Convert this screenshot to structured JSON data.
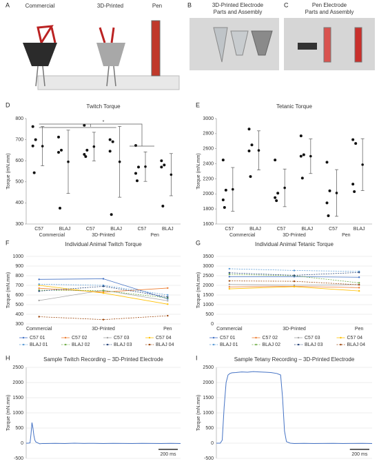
{
  "photos": {
    "a": {
      "label": "A",
      "captions": [
        "Commercial",
        "3D-Printed",
        "Pen"
      ]
    },
    "b": {
      "label": "B",
      "title": [
        "3D-Printed Electrode",
        "Parts and Assembly"
      ]
    },
    "c": {
      "label": "C",
      "title": [
        "Pen Electrode",
        "Parts and Assembly"
      ]
    }
  },
  "chart_data": [
    {
      "type": "dotplot",
      "label": "D",
      "title": "Twitch Torque",
      "y_label": "Torque (mN.mm)",
      "categories": [
        "C57",
        "BLAJ",
        "C57",
        "BLAJ",
        "C57",
        "BLAJ"
      ],
      "groups": [
        "Commercial",
        "3D-Printed",
        "Pen"
      ],
      "points": [
        [
          762,
          700,
          670,
          543
        ],
        [
          712,
          650,
          640,
          375
        ],
        [
          768,
          650,
          630,
          620
        ],
        [
          700,
          690,
          645,
          345
        ],
        [
          672,
          570,
          540,
          505
        ],
        [
          600,
          580,
          570,
          385
        ]
      ],
      "means": [
        669,
        595,
        667,
        595,
        572,
        534
      ],
      "errors": [
        93,
        150,
        68,
        168,
        70,
        100
      ],
      "annotation": "*",
      "ylim": [
        300,
        800
      ],
      "yticks": [
        300,
        400,
        500,
        600,
        700,
        800
      ],
      "color": "#111111"
    },
    {
      "type": "dotplot",
      "label": "E",
      "title": "Tetanic Torque",
      "y_label": "Torque (mN.mm)",
      "categories": [
        "C57",
        "BLAJ",
        "C57",
        "BLAJ",
        "C57",
        "BLAJ"
      ],
      "groups": [
        "Commercial",
        "3D-Printed",
        "Pen"
      ],
      "points": [
        [
          2450,
          2050,
          1920,
          1820
        ],
        [
          2860,
          2650,
          2570,
          2230
        ],
        [
          2450,
          2010,
          1950,
          1910
        ],
        [
          2770,
          2520,
          2500,
          2210
        ],
        [
          2420,
          2040,
          1880,
          1710
        ],
        [
          2720,
          2670,
          2130,
          2030
        ]
      ],
      "means": [
        2060,
        2577,
        2080,
        2500,
        2012,
        2388
      ],
      "errors": [
        290,
        260,
        250,
        230,
        310,
        345
      ],
      "ylim": [
        1600,
        3000
      ],
      "yticks": [
        1600,
        1800,
        2000,
        2200,
        2400,
        2600,
        2800,
        3000
      ],
      "color": "#111111"
    },
    {
      "type": "line",
      "label": "F",
      "title": "Individual Animal Twitch Torque",
      "y_label": "Torque (mN.mm)",
      "categories": [
        "Commercial",
        "3D-Printed",
        "Pen"
      ],
      "ylim": [
        300,
        1000
      ],
      "yticks": [
        300,
        400,
        500,
        600,
        700,
        800,
        900,
        1000
      ],
      "grid": true,
      "series": [
        {
          "name": "C57 01",
          "color": "#4472c4",
          "dash": false,
          "values": [
            762,
            768,
            560
          ]
        },
        {
          "name": "C57 02",
          "color": "#ed7d31",
          "dash": false,
          "values": [
            670,
            630,
            672
          ]
        },
        {
          "name": "C57 03",
          "color": "#a5a5a5",
          "dash": false,
          "values": [
            543,
            650,
            540
          ]
        },
        {
          "name": "C57 04",
          "color": "#ffc000",
          "dash": false,
          "values": [
            700,
            620,
            505
          ]
        },
        {
          "name": "BLAJ 01",
          "color": "#5b9bd5",
          "dash": true,
          "values": [
            712,
            700,
            600
          ]
        },
        {
          "name": "BLAJ 02",
          "color": "#70ad47",
          "dash": true,
          "values": [
            650,
            645,
            570
          ]
        },
        {
          "name": "BLAJ 03",
          "color": "#264478",
          "dash": true,
          "values": [
            640,
            690,
            580
          ]
        },
        {
          "name": "BLAJ 04",
          "color": "#9e480e",
          "dash": true,
          "values": [
            375,
            345,
            385
          ]
        }
      ]
    },
    {
      "type": "line",
      "label": "G",
      "title": "Individual Animal Tetanic Torque",
      "y_label": "Torque (mN.mm)",
      "categories": [
        "Commercial",
        "3D-Printed",
        "Pen"
      ],
      "ylim": [
        0,
        3500
      ],
      "yticks": [
        0,
        500,
        1000,
        1500,
        2000,
        2500,
        3000,
        3500
      ],
      "grid": true,
      "series": [
        {
          "name": "C57 01",
          "color": "#4472c4",
          "dash": false,
          "values": [
            2450,
            2450,
            2420
          ]
        },
        {
          "name": "C57 02",
          "color": "#ed7d31",
          "dash": false,
          "values": [
            1920,
            1950,
            1880
          ]
        },
        {
          "name": "C57 03",
          "color": "#a5a5a5",
          "dash": false,
          "values": [
            2050,
            2010,
            2040
          ]
        },
        {
          "name": "C57 04",
          "color": "#ffc000",
          "dash": false,
          "values": [
            1820,
            1930,
            1710
          ]
        },
        {
          "name": "BLAJ 01",
          "color": "#5b9bd5",
          "dash": true,
          "values": [
            2860,
            2770,
            2720
          ]
        },
        {
          "name": "BLAJ 02",
          "color": "#70ad47",
          "dash": true,
          "values": [
            2570,
            2500,
            2130
          ]
        },
        {
          "name": "BLAJ 03",
          "color": "#264478",
          "dash": true,
          "values": [
            2650,
            2520,
            2670
          ]
        },
        {
          "name": "BLAJ 04",
          "color": "#9e480e",
          "dash": true,
          "values": [
            2230,
            2210,
            2030
          ]
        }
      ]
    },
    {
      "type": "trace",
      "label": "H",
      "title": "Sample Twitch Recording – 3D-Printed Electrode",
      "y_label": "Torque (mN.mm)",
      "x": [
        0,
        20,
        40,
        50,
        60,
        70,
        80,
        90,
        100,
        120,
        140,
        170,
        200,
        300,
        400,
        500,
        600,
        700,
        800,
        900,
        1000,
        1100,
        1200,
        1300,
        1400,
        1500,
        1600
      ],
      "y": [
        0,
        0,
        10,
        300,
        680,
        500,
        250,
        100,
        40,
        10,
        -20,
        -10,
        -10,
        -5,
        -10,
        0,
        -8,
        -5,
        -10,
        -5,
        -8,
        -10,
        -5,
        -8,
        -10,
        -5,
        -10
      ],
      "xlim": [
        0,
        1600
      ],
      "ylim": [
        -500,
        2500
      ],
      "yticks": [
        -500,
        0,
        500,
        1000,
        1500,
        2000,
        2500
      ],
      "grid": true,
      "color": "#4472c4",
      "scale_bar": {
        "value": 200,
        "label": "200 ms"
      }
    },
    {
      "type": "trace",
      "label": "I",
      "title": "Sample Tetany Recording – 3D-Printed Electrode",
      "y_label": "Torque (mN.mm)",
      "x": [
        0,
        40,
        60,
        80,
        100,
        120,
        140,
        160,
        200,
        260,
        320,
        380,
        440,
        500,
        560,
        620,
        660,
        680,
        700,
        720,
        760,
        800,
        900,
        1000,
        1100,
        1200,
        1300,
        1400,
        1500,
        1600
      ],
      "y": [
        0,
        0,
        100,
        1200,
        2000,
        2250,
        2300,
        2320,
        2330,
        2350,
        2340,
        2360,
        2350,
        2340,
        2330,
        2300,
        2250,
        1500,
        400,
        50,
        0,
        -10,
        -5,
        -10,
        -8,
        -5,
        -10,
        -8,
        -5,
        -10
      ],
      "xlim": [
        0,
        1600
      ],
      "ylim": [
        -500,
        2500
      ],
      "yticks": [
        -500,
        0,
        500,
        1000,
        1500,
        2000,
        2500
      ],
      "grid": true,
      "color": "#4472c4",
      "scale_bar": {
        "value": 200,
        "label": "200 ms"
      }
    }
  ]
}
